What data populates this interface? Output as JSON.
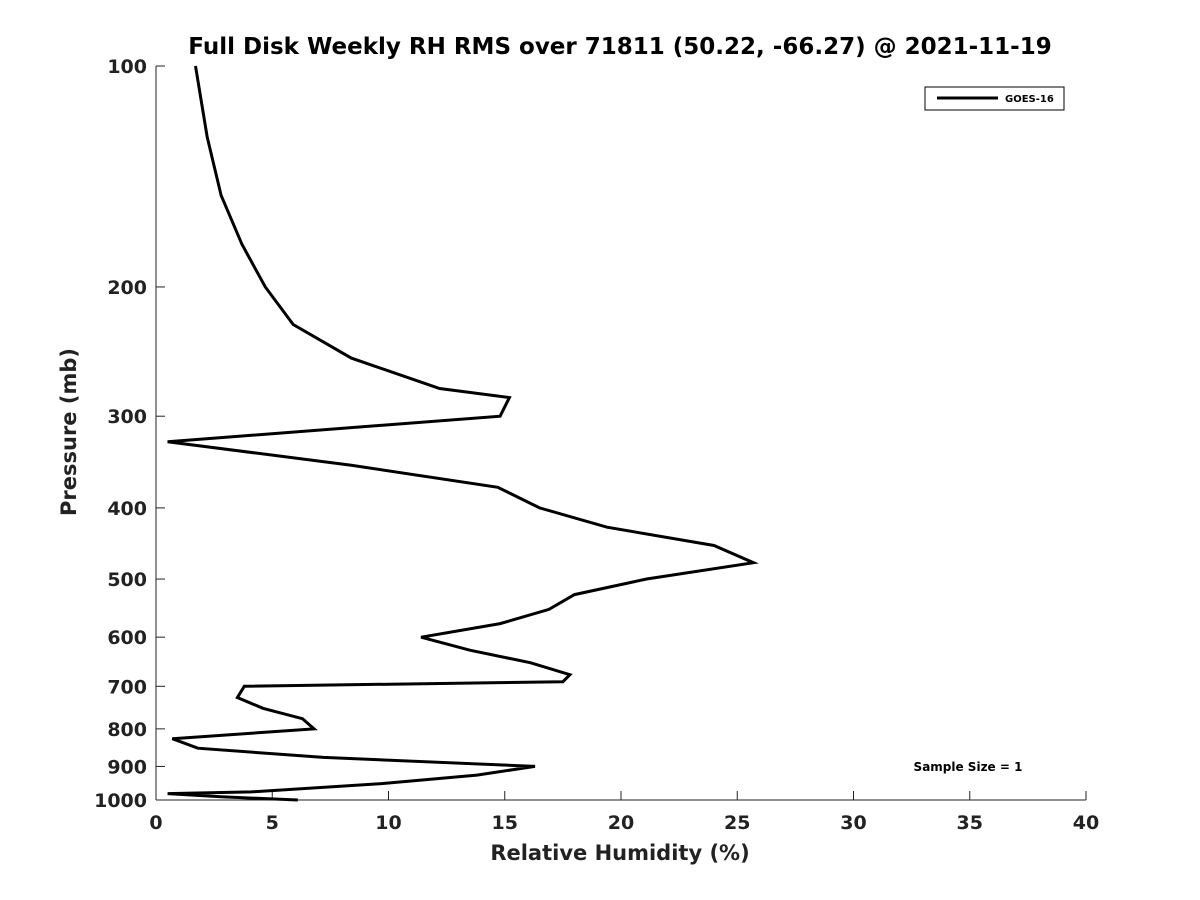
{
  "chart_data": {
    "type": "line",
    "title": "Full Disk Weekly RH RMS over 71811 (50.22, -66.27) @ 2021-11-19",
    "xlabel": "Relative Humidity (%)",
    "ylabel": "Pressure (mb)",
    "xlim": [
      0,
      40
    ],
    "ylim": [
      100,
      1000
    ],
    "y_scale": "log",
    "y_reversed": true,
    "grid": false,
    "legend_position": "top-right",
    "xticks": [
      0,
      5,
      10,
      15,
      20,
      25,
      30,
      35,
      40
    ],
    "yticks": [
      100,
      200,
      300,
      400,
      500,
      600,
      700,
      800,
      900,
      1000
    ],
    "series": [
      {
        "name": "GOES-16",
        "color": "#000000",
        "x": [
          1.7,
          2.2,
          2.8,
          3.7,
          4.7,
          5.9,
          8.4,
          12.2,
          15.2,
          14.8,
          0.5,
          8.4,
          14.7,
          16.5,
          19.4,
          24.0,
          25.7,
          21.1,
          18.0,
          16.9,
          14.8,
          11.4,
          13.5,
          16.1,
          17.8,
          17.5,
          3.8,
          3.5,
          4.6,
          6.3,
          6.8,
          0.7,
          1.8,
          7.2,
          16.3,
          13.8,
          9.7,
          4.1,
          0.5,
          2.8,
          6.1
        ],
        "y": [
          100,
          125,
          150,
          175,
          200,
          225,
          250,
          275,
          283,
          300,
          325,
          350,
          375,
          400,
          425,
          450,
          475,
          500,
          525,
          550,
          575,
          600,
          625,
          650,
          675,
          690,
          700,
          725,
          750,
          775,
          800,
          825,
          850,
          875,
          900,
          925,
          950,
          975,
          980,
          990,
          1000
        ]
      }
    ],
    "annotations": [
      "Sample Size = 1"
    ]
  }
}
